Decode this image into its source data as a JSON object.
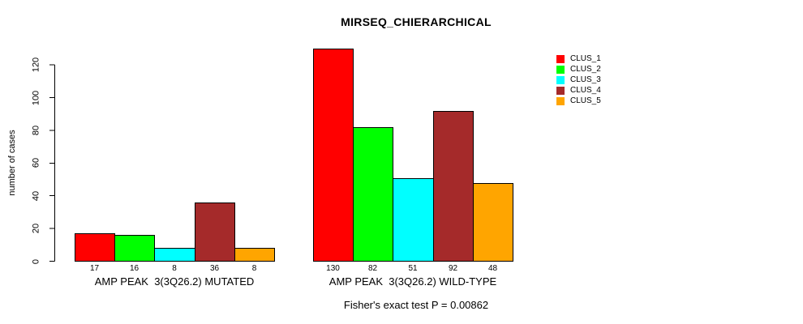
{
  "chart_data": {
    "type": "bar",
    "title": "MIRSEQ_CHIERARCHICAL",
    "subtitle": "Fisher's exact test P = 0.00862",
    "xlabel": "",
    "ylabel": "number of cases",
    "ylim": [
      0,
      130
    ],
    "yticks": [
      0,
      20,
      40,
      60,
      80,
      100,
      120
    ],
    "grid": false,
    "legend_position": "top-right-inside",
    "legend_box": false,
    "bar_value_labels": true,
    "categories": [
      "AMP PEAK  3(3Q26.2) MUTATED",
      "AMP PEAK  3(3Q26.2) WILD-TYPE"
    ],
    "series": [
      {
        "name": "CLUS_1",
        "color": "#FF0000",
        "values": [
          17,
          130
        ]
      },
      {
        "name": "CLUS_2",
        "color": "#00FF00",
        "values": [
          16,
          82
        ]
      },
      {
        "name": "CLUS_3",
        "color": "#00FFFF",
        "values": [
          8,
          51
        ]
      },
      {
        "name": "CLUS_4",
        "color": "#A52A2A",
        "values": [
          36,
          92
        ]
      },
      {
        "name": "CLUS_5",
        "color": "#FFA500",
        "values": [
          8,
          48
        ]
      }
    ],
    "colors": {
      "background": "#FFFFFF",
      "axis": "#000000",
      "text": "#000000",
      "bar_border": "#000000"
    }
  }
}
